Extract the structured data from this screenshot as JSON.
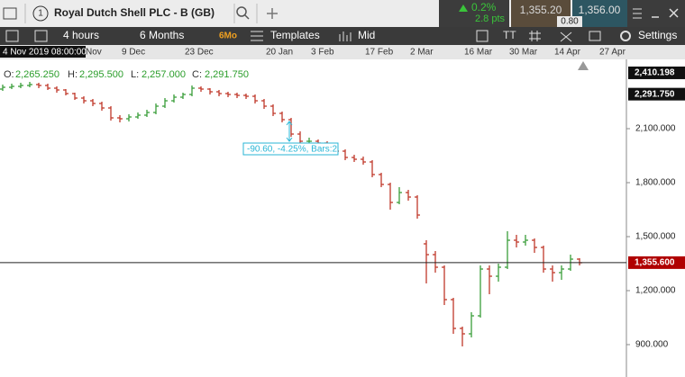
{
  "header": {
    "tab_number": "1",
    "instrument": "Royal Dutch Shell PLC - B (GB)",
    "change_pct": "0.2%",
    "change_pts": "2.8 pts",
    "sell": "1,355.20",
    "buy": "1,356.00",
    "spread": "0.80"
  },
  "toolbar": {
    "interval": "4 hours",
    "range": "6 Months",
    "range_badge": "6Mo",
    "templates": "Templates",
    "price_type": "Mid",
    "settings": "Settings"
  },
  "crosshair_label": "4 Nov 2019 08:00:00",
  "ohlc_legend": {
    "o_label": "O:",
    "o": "2,265.250",
    "h_label": "H:",
    "h": "2,295.500",
    "l_label": "L:",
    "l": "2,257.000",
    "c_label": "C:",
    "c": "2,291.750"
  },
  "annotation": "-90.60, -4.25%, Bars:2",
  "chart_data": {
    "type": "ohlc",
    "categories": [
      null,
      null,
      null,
      null,
      null,
      null,
      null,
      null,
      null,
      "Nov",
      null,
      null,
      null,
      "9 Dec",
      null,
      null,
      null,
      null,
      null,
      null,
      "23 Dec",
      null,
      null,
      null,
      null,
      null,
      null,
      null,
      null,
      "20 Jan",
      null,
      null,
      null,
      null,
      "3 Feb",
      null,
      null,
      null,
      null,
      null,
      "17 Feb",
      null,
      null,
      null,
      null,
      "2 Mar",
      null,
      null,
      null,
      null,
      null,
      "16 Mar",
      null,
      null,
      null,
      null,
      "30 Mar",
      null,
      null,
      null,
      null,
      "14 Apr",
      null,
      null,
      null,
      null,
      "27 Apr"
    ],
    "open": [
      2320,
      2330,
      2335,
      2340,
      2345,
      2340,
      2325,
      2315,
      2295,
      2270,
      2255,
      2240,
      2215,
      2160,
      2155,
      2165,
      2175,
      2190,
      2225,
      2255,
      2275,
      2290,
      2325,
      2320,
      2305,
      2295,
      2290,
      2285,
      2280,
      2255,
      2225,
      2185,
      2150,
      2070,
      2030,
      2030,
      2020,
      2010,
      1975,
      1940,
      1930,
      1915,
      1845,
      1790,
      1690,
      1745,
      1720,
      1460,
      1400,
      1330,
      1150,
      990,
      960,
      1060,
      1320,
      1280,
      1330,
      1480,
      1470,
      1480,
      1440,
      1320,
      1300,
      1320,
      1375,
      null,
      null
    ],
    "high": [
      2345,
      2350,
      2355,
      2360,
      2355,
      2350,
      2335,
      2320,
      2300,
      2280,
      2265,
      2250,
      2225,
      2175,
      2180,
      2190,
      2205,
      2240,
      2270,
      2290,
      2300,
      2340,
      2335,
      2325,
      2315,
      2305,
      2300,
      2295,
      2290,
      2265,
      2235,
      2195,
      2160,
      2085,
      2050,
      2040,
      2030,
      2020,
      1985,
      1955,
      1945,
      1925,
      1855,
      1800,
      1775,
      1760,
      1730,
      1480,
      1420,
      1340,
      1160,
      1000,
      1080,
      1340,
      1340,
      1350,
      1530,
      1510,
      1510,
      1490,
      1450,
      1340,
      1340,
      1400,
      1380,
      null,
      null
    ],
    "low": [
      2310,
      2320,
      2325,
      2330,
      2325,
      2315,
      2300,
      2285,
      2260,
      2240,
      2225,
      2200,
      2145,
      2135,
      2140,
      2155,
      2165,
      2180,
      2215,
      2245,
      2265,
      2280,
      2305,
      2290,
      2280,
      2275,
      2270,
      2265,
      2240,
      2210,
      2170,
      2135,
      2055,
      2015,
      2015,
      2005,
      1995,
      1960,
      1925,
      1915,
      1900,
      1830,
      1775,
      1650,
      1680,
      1700,
      1600,
      1240,
      1300,
      1120,
      960,
      890,
      940,
      1050,
      1180,
      1250,
      1320,
      1440,
      1450,
      1410,
      1300,
      1250,
      1260,
      1310,
      1340,
      null,
      null
    ],
    "close": [
      2330,
      2335,
      2340,
      2345,
      2340,
      2325,
      2315,
      2295,
      2270,
      2255,
      2240,
      2215,
      2160,
      2155,
      2165,
      2175,
      2190,
      2225,
      2255,
      2275,
      2290,
      2325,
      2320,
      2305,
      2295,
      2290,
      2285,
      2280,
      2255,
      2225,
      2185,
      2150,
      2070,
      2030,
      2030,
      2020,
      2010,
      1975,
      1940,
      1930,
      1915,
      1845,
      1790,
      1690,
      1745,
      1720,
      1620,
      1400,
      1330,
      1150,
      990,
      960,
      1060,
      1320,
      1280,
      1330,
      1480,
      1470,
      1480,
      1440,
      1320,
      1300,
      1320,
      1375,
      1355,
      null,
      null
    ],
    "up_color": "#3a9d3a",
    "down_color": "#c0392b",
    "ylim": [
      720,
      2485
    ],
    "yticks": [
      {
        "value": 900,
        "label": "900.000"
      },
      {
        "value": 1200,
        "label": "1,200.000"
      },
      {
        "value": 1500,
        "label": "1,500.000"
      },
      {
        "value": 1800,
        "label": "1,800.000"
      },
      {
        "value": 2100,
        "label": "2,100.000"
      }
    ],
    "price_markers": [
      {
        "value": 2410.198,
        "label": "2,410.198",
        "color": "#111111"
      },
      {
        "value": 2291.75,
        "label": "2,291.750",
        "color": "#111111"
      },
      {
        "value": 1355.6,
        "label": "1,355.600",
        "color": "#b00000"
      }
    ],
    "price_line": 1355.6
  }
}
